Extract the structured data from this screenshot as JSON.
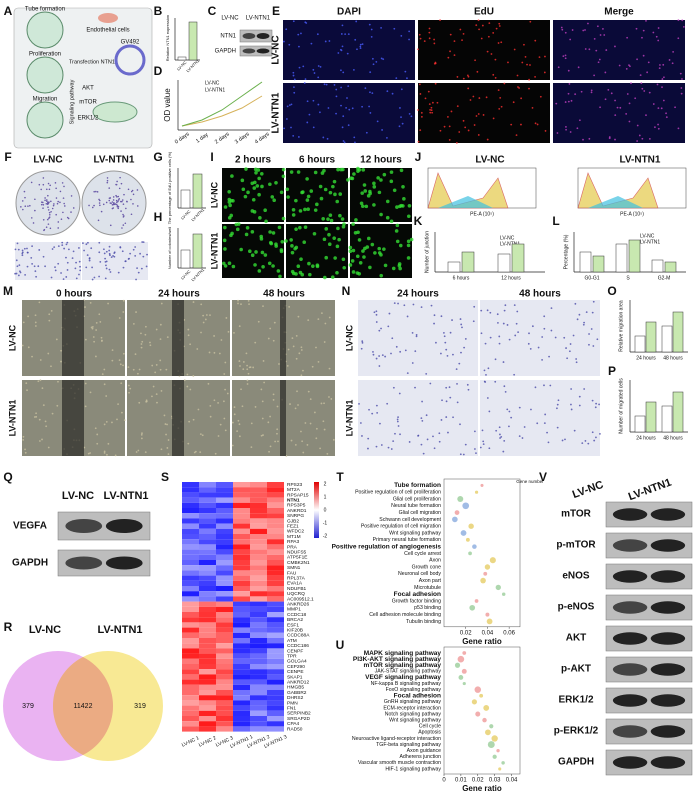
{
  "labels": [
    "A",
    "B",
    "C",
    "D",
    "E",
    "F",
    "G",
    "H",
    "I",
    "J",
    "K",
    "L",
    "M",
    "N",
    "O",
    "P",
    "Q",
    "R",
    "S",
    "T",
    "U",
    "V"
  ],
  "groups": [
    "LV-NC",
    "LV-NTN1"
  ],
  "A": {
    "items": [
      "Tube formation",
      "Proliferation",
      "Migration",
      "Endothelial cells",
      "GV492",
      "Transfection NTN1",
      "AKT",
      "mTOR",
      "ERK1/2",
      "Signaling pathway"
    ]
  },
  "B": {
    "ylabel": "Relative NTN1 expression"
  },
  "C": {
    "bands": [
      "NTN1",
      "GAPDH"
    ]
  },
  "D": {
    "ylabel": "OD value",
    "xcats": [
      "0 days",
      "1 day",
      "2 days",
      "3 days",
      "4 days"
    ]
  },
  "E": {
    "columns": [
      "DAPI",
      "EdU",
      "Merge"
    ]
  },
  "G": {
    "ylabel": "The percentage of EdU positive cells (%)"
  },
  "H": {
    "ylabel": "Number of colonies/well"
  },
  "I": {
    "columns": [
      "2 hours",
      "6 hours",
      "12 hours"
    ]
  },
  "J": {
    "xlabel": "PE-A (10⁵)"
  },
  "K": {
    "ylabel": "Number of junction",
    "xcats": [
      "6 hours",
      "12 hours"
    ]
  },
  "L": {
    "ylabel": "Percentage (%)",
    "xcats": [
      "G0-G1",
      "S",
      "G2-M"
    ]
  },
  "M": {
    "columns": [
      "0 hours",
      "24 hours",
      "48 hours"
    ]
  },
  "N": {
    "columns": [
      "24 hours",
      "48 hours"
    ]
  },
  "O": {
    "ylabel": "Relative migration area",
    "xcats": [
      "24 hours",
      "48 hours"
    ]
  },
  "P": {
    "ylabel": "Number of migrated cells",
    "xcats": [
      "24 hours",
      "48 hours"
    ]
  },
  "Q": {
    "bands": [
      "VEGFA",
      "GAPDH"
    ]
  },
  "R": {
    "counts": [
      379,
      11422,
      319
    ]
  },
  "S": {
    "genes_up": [
      "RPS23",
      "MT2A",
      "RPSAP15",
      "NTN1",
      "RPS3P5",
      "ANKRD1",
      "SNRPG",
      "GJB2",
      "FEZ1",
      "WFDC2",
      "MT1M",
      "RPA3",
      "PRA",
      "NDUFS5",
      "ATP5F1E",
      "CMBK2N1",
      "SMN1",
      "FAU",
      "RPL37A",
      "EVA1A",
      "NDUFB1",
      "UQCRQ",
      "AC009512.1"
    ],
    "genes_down": [
      "ANKRD26",
      "MMP1",
      "CCDC18",
      "BRCA2",
      "ESF1",
      "KIF20B",
      "CCDC88A",
      "ATM",
      "CCDC186",
      "CENPF",
      "TPR",
      "GOLGA4",
      "CEP290",
      "CENPE",
      "SKAP1",
      "ANKRD12",
      "HMGB5",
      "GABBR2",
      "DHRS2",
      "PMN",
      "FN1",
      "SERPINB2",
      "SRGAP2D",
      "CPA4",
      "RAD50"
    ],
    "samples": [
      "LV-NC 1",
      "LV-NC 2",
      "LV-NC 3",
      "LV-NTN1 1",
      "LV-NTN1 2",
      "LV-NTN1 3"
    ],
    "scale": [
      2,
      1,
      0,
      -1,
      -2
    ]
  },
  "T": {
    "terms": [
      "Tube formation",
      "Positive regulation of cell proliferation",
      "Glial cell proliferation",
      "Neural tube formation",
      "Glial cell migration",
      "Schwann cell development",
      "Positive regulation of cell migration",
      "Wnt signaling pathway",
      "Primary neural tube formation",
      "Positive regulation of angiogenesis",
      "Cell cycle arrest",
      "Axon",
      "Growth cone",
      "Neuronal cell body",
      "Axon part",
      "Microtubule",
      "Focal adhesion",
      "Growth factor binding",
      "p53 binding",
      "Cell adhesion molecule binding",
      "Tubulin binding"
    ],
    "highlight": [
      0,
      9,
      16
    ],
    "gene_ratio": [
      0.035,
      0.03,
      0.015,
      0.02,
      0.012,
      0.01,
      0.025,
      0.018,
      0.022,
      0.028,
      0.024,
      0.045,
      0.04,
      0.038,
      0.036,
      0.05,
      0.055,
      0.03,
      0.026,
      0.04,
      0.042
    ],
    "xlabel": "Gene ratio",
    "legend_title": "Gene number",
    "xlim": [
      0,
      0.07
    ],
    "xticks": [
      0.02,
      0.04,
      0.06
    ]
  },
  "U": {
    "terms": [
      "MAPK signaling pathway",
      "PI3K-AKT signaling pathway",
      "mTOR signaling pathway",
      "JAK-STAT signaling pathway",
      "VEGF signaling pathway",
      "NF-kappa B signaling pathway",
      "FoxO signaling pathway",
      "Focal adhesion",
      "GnRH signaling pathway",
      "ECM-receptor interaction",
      "Notch signaling pathway",
      "Wnt signaling pathway",
      "Cell cycle",
      "Apoptosis",
      "Neuroactive ligand-receptor interaction",
      "TGF-beta signaling pathway",
      "Axon guidance",
      "Adherens junction",
      "Vascular smooth muscle contraction",
      "HIF-1 signaling pathway"
    ],
    "highlight": [
      0,
      1,
      2,
      4,
      7
    ],
    "gene_ratio": [
      0.012,
      0.01,
      0.008,
      0.012,
      0.01,
      0.012,
      0.02,
      0.022,
      0.018,
      0.025,
      0.02,
      0.024,
      0.028,
      0.026,
      0.03,
      0.028,
      0.032,
      0.03,
      0.035,
      0.033
    ],
    "xlabel": "Gene ratio",
    "xlim": [
      0,
      0.045
    ],
    "xticks": [
      0,
      0.01,
      0.02,
      0.03,
      0.04
    ]
  },
  "V": {
    "bands": [
      "mTOR",
      "p-mTOR",
      "eNOS",
      "p-eNOS",
      "AKT",
      "p-AKT",
      "ERK1/2",
      "p-ERK1/2",
      "GAPDH"
    ]
  }
}
